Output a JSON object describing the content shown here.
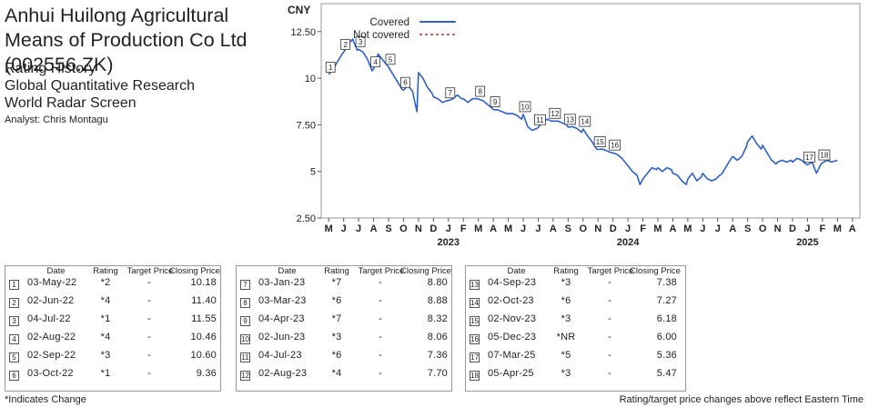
{
  "header": {
    "title": "Anhui Huilong Agricultural Means of Production Co Ltd (002556.ZK)",
    "lines": [
      "Rating History",
      "Global Quantitative Research",
      "World Radar Screen"
    ],
    "analyst": "Analyst: Chris Montagu"
  },
  "chart_data": {
    "type": "line",
    "ylabel": "CNY",
    "yticks": [
      "2.50",
      "5",
      "7.50",
      "10",
      "12.50"
    ],
    "ylim": [
      2.5,
      14.0
    ],
    "months": [
      "M",
      "J",
      "J",
      "A",
      "S",
      "O",
      "N",
      "D",
      "J",
      "F",
      "M",
      "A",
      "M",
      "J",
      "J",
      "A",
      "S",
      "O",
      "N",
      "D",
      "J",
      "F",
      "M",
      "A",
      "M",
      "J",
      "J",
      "A",
      "S",
      "O",
      "N",
      "D",
      "J",
      "F",
      "M",
      "A"
    ],
    "years": [
      {
        "label": "2023",
        "index": 8
      },
      {
        "label": "2024",
        "index": 20
      },
      {
        "label": "2025",
        "index": 32
      }
    ],
    "legend": [
      {
        "name": "Covered",
        "color": "#2e5fd6",
        "style": "solid"
      },
      {
        "name": "Not covered",
        "color": "#e53935",
        "style": "dotted"
      }
    ],
    "series": [
      {
        "name": "Covered",
        "color": "#2e5fd6",
        "points": [
          [
            0,
            10.2
          ],
          [
            0.3,
            10.5
          ],
          [
            0.6,
            10.9
          ],
          [
            0.9,
            11.3
          ],
          [
            1.0,
            11.4
          ],
          [
            1.3,
            11.8
          ],
          [
            1.6,
            12.1
          ],
          [
            1.9,
            11.5
          ],
          [
            2.0,
            11.55
          ],
          [
            2.3,
            11.4
          ],
          [
            2.6,
            11.0
          ],
          [
            2.9,
            10.4
          ],
          [
            3.0,
            10.5
          ],
          [
            3.3,
            11.3
          ],
          [
            3.6,
            11.0
          ],
          [
            3.9,
            10.7
          ],
          [
            4.0,
            10.6
          ],
          [
            4.3,
            10.2
          ],
          [
            4.6,
            9.8
          ],
          [
            4.9,
            9.4
          ],
          [
            5.0,
            9.36
          ],
          [
            5.3,
            9.6
          ],
          [
            5.6,
            9.3
          ],
          [
            5.9,
            8.2
          ],
          [
            6.0,
            10.3
          ],
          [
            6.3,
            10.0
          ],
          [
            6.6,
            9.5
          ],
          [
            6.9,
            9.2
          ],
          [
            7.0,
            9.0
          ],
          [
            7.3,
            8.9
          ],
          [
            7.6,
            8.7
          ],
          [
            7.9,
            8.8
          ],
          [
            8.0,
            8.8
          ],
          [
            8.3,
            8.9
          ],
          [
            8.6,
            9.1
          ],
          [
            8.9,
            8.9
          ],
          [
            9.0,
            8.9
          ],
          [
            9.3,
            8.7
          ],
          [
            9.6,
            8.9
          ],
          [
            9.9,
            8.9
          ],
          [
            10.0,
            8.88
          ],
          [
            10.3,
            8.8
          ],
          [
            10.6,
            8.6
          ],
          [
            10.9,
            8.4
          ],
          [
            11.0,
            8.32
          ],
          [
            11.3,
            8.3
          ],
          [
            11.6,
            8.2
          ],
          [
            11.9,
            8.1
          ],
          [
            12.0,
            8.1
          ],
          [
            12.3,
            8.1
          ],
          [
            12.6,
            8.0
          ],
          [
            12.9,
            7.8
          ],
          [
            13.0,
            8.06
          ],
          [
            13.3,
            7.4
          ],
          [
            13.6,
            7.2
          ],
          [
            13.9,
            7.3
          ],
          [
            14.0,
            7.36
          ],
          [
            14.3,
            7.7
          ],
          [
            14.6,
            7.8
          ],
          [
            14.9,
            7.7
          ],
          [
            15.0,
            7.7
          ],
          [
            15.3,
            7.7
          ],
          [
            15.6,
            7.6
          ],
          [
            15.9,
            7.5
          ],
          [
            16.0,
            7.38
          ],
          [
            16.3,
            7.4
          ],
          [
            16.6,
            7.3
          ],
          [
            16.9,
            7.1
          ],
          [
            17.0,
            7.27
          ],
          [
            17.3,
            6.9
          ],
          [
            17.6,
            6.6
          ],
          [
            17.9,
            6.2
          ],
          [
            18.0,
            6.18
          ],
          [
            18.3,
            6.2
          ],
          [
            18.6,
            6.1
          ],
          [
            18.9,
            6.0
          ],
          [
            19.0,
            6.0
          ],
          [
            19.3,
            5.9
          ],
          [
            19.6,
            5.7
          ],
          [
            19.9,
            5.4
          ],
          [
            20.0,
            5.3
          ],
          [
            20.3,
            5.0
          ],
          [
            20.6,
            4.8
          ],
          [
            20.8,
            4.3
          ],
          [
            21.0,
            4.6
          ],
          [
            21.3,
            4.9
          ],
          [
            21.6,
            5.2
          ],
          [
            21.9,
            5.1
          ],
          [
            22.0,
            5.2
          ],
          [
            22.3,
            5.0
          ],
          [
            22.6,
            5.2
          ],
          [
            22.9,
            5.1
          ],
          [
            23.0,
            4.9
          ],
          [
            23.3,
            4.8
          ],
          [
            23.6,
            4.5
          ],
          [
            23.9,
            4.3
          ],
          [
            24.0,
            4.6
          ],
          [
            24.3,
            4.9
          ],
          [
            24.6,
            4.5
          ],
          [
            24.9,
            4.7
          ],
          [
            25.0,
            4.9
          ],
          [
            25.3,
            4.6
          ],
          [
            25.6,
            4.5
          ],
          [
            25.9,
            4.6
          ],
          [
            26.0,
            4.7
          ],
          [
            26.3,
            4.9
          ],
          [
            26.6,
            5.3
          ],
          [
            26.9,
            5.7
          ],
          [
            27.0,
            5.8
          ],
          [
            27.3,
            5.6
          ],
          [
            27.6,
            5.8
          ],
          [
            27.9,
            6.3
          ],
          [
            28.0,
            6.6
          ],
          [
            28.3,
            6.9
          ],
          [
            28.6,
            6.5
          ],
          [
            28.9,
            6.2
          ],
          [
            29.0,
            6.4
          ],
          [
            29.3,
            6.0
          ],
          [
            29.6,
            5.6
          ],
          [
            29.9,
            5.4
          ],
          [
            30.0,
            5.5
          ],
          [
            30.3,
            5.6
          ],
          [
            30.6,
            5.5
          ],
          [
            30.9,
            5.6
          ],
          [
            31.0,
            5.5
          ],
          [
            31.3,
            5.7
          ],
          [
            31.6,
            5.6
          ],
          [
            31.9,
            5.4
          ],
          [
            32.0,
            5.36
          ],
          [
            32.3,
            5.5
          ],
          [
            32.6,
            4.9
          ],
          [
            32.9,
            5.4
          ],
          [
            33.0,
            5.47
          ],
          [
            33.3,
            5.6
          ],
          [
            33.6,
            5.5
          ],
          [
            34.0,
            5.6
          ]
        ]
      }
    ],
    "markers": [
      {
        "n": "1",
        "x": 0,
        "y": 10.18
      },
      {
        "n": "2",
        "x": 1,
        "y": 11.4
      },
      {
        "n": "3",
        "x": 2,
        "y": 11.55
      },
      {
        "n": "4",
        "x": 3,
        "y": 10.46
      },
      {
        "n": "5",
        "x": 4,
        "y": 10.6
      },
      {
        "n": "6",
        "x": 5,
        "y": 9.36
      },
      {
        "n": "7",
        "x": 8,
        "y": 8.8
      },
      {
        "n": "8",
        "x": 10,
        "y": 8.88
      },
      {
        "n": "9",
        "x": 11,
        "y": 8.32
      },
      {
        "n": "10",
        "x": 13,
        "y": 8.06
      },
      {
        "n": "11",
        "x": 14,
        "y": 7.36
      },
      {
        "n": "12",
        "x": 15,
        "y": 7.7
      },
      {
        "n": "13",
        "x": 16,
        "y": 7.38
      },
      {
        "n": "14",
        "x": 17,
        "y": 7.27
      },
      {
        "n": "15",
        "x": 18,
        "y": 6.18
      },
      {
        "n": "16",
        "x": 19,
        "y": 6.0
      },
      {
        "n": "17",
        "x": 32,
        "y": 5.36
      },
      {
        "n": "18",
        "x": 33,
        "y": 5.47
      }
    ]
  },
  "table": {
    "headers": {
      "date": "Date",
      "rating": "Rating",
      "target": "Target Price",
      "close": "Closing Price"
    },
    "groups": [
      [
        {
          "n": "1",
          "date": "03-May-22",
          "rating": "*2",
          "target": "-",
          "close": "10.18"
        },
        {
          "n": "2",
          "date": "02-Jun-22",
          "rating": "*4",
          "target": "-",
          "close": "11.40"
        },
        {
          "n": "3",
          "date": "04-Jul-22",
          "rating": "*1",
          "target": "-",
          "close": "11.55"
        },
        {
          "n": "4",
          "date": "02-Aug-22",
          "rating": "*4",
          "target": "-",
          "close": "10.46"
        },
        {
          "n": "5",
          "date": "02-Sep-22",
          "rating": "*3",
          "target": "-",
          "close": "10.60"
        },
        {
          "n": "6",
          "date": "03-Oct-22",
          "rating": "*1",
          "target": "-",
          "close": "9.36"
        }
      ],
      [
        {
          "n": "7",
          "date": "03-Jan-23",
          "rating": "*7",
          "target": "-",
          "close": "8.80"
        },
        {
          "n": "8",
          "date": "03-Mar-23",
          "rating": "*6",
          "target": "-",
          "close": "8.88"
        },
        {
          "n": "9",
          "date": "04-Apr-23",
          "rating": "*7",
          "target": "-",
          "close": "8.32"
        },
        {
          "n": "10",
          "date": "02-Jun-23",
          "rating": "*3",
          "target": "-",
          "close": "8.06"
        },
        {
          "n": "11",
          "date": "04-Jul-23",
          "rating": "*6",
          "target": "-",
          "close": "7.36"
        },
        {
          "n": "12",
          "date": "02-Aug-23",
          "rating": "*4",
          "target": "-",
          "close": "7.70"
        }
      ],
      [
        {
          "n": "13",
          "date": "04-Sep-23",
          "rating": "*3",
          "target": "-",
          "close": "7.38"
        },
        {
          "n": "14",
          "date": "02-Oct-23",
          "rating": "*6",
          "target": "-",
          "close": "7.27"
        },
        {
          "n": "15",
          "date": "02-Nov-23",
          "rating": "*3",
          "target": "-",
          "close": "6.18"
        },
        {
          "n": "16",
          "date": "05-Dec-23",
          "rating": "*NR",
          "target": "-",
          "close": "6.00"
        },
        {
          "n": "17",
          "date": "07-Mar-25",
          "rating": "*5",
          "target": "-",
          "close": "5.36"
        },
        {
          "n": "18",
          "date": "05-Apr-25",
          "rating": "*3",
          "target": "-",
          "close": "5.47"
        }
      ]
    ]
  },
  "footer": {
    "left": "*Indicates Change",
    "right": "Rating/target price changes above reflect Eastern Time"
  }
}
